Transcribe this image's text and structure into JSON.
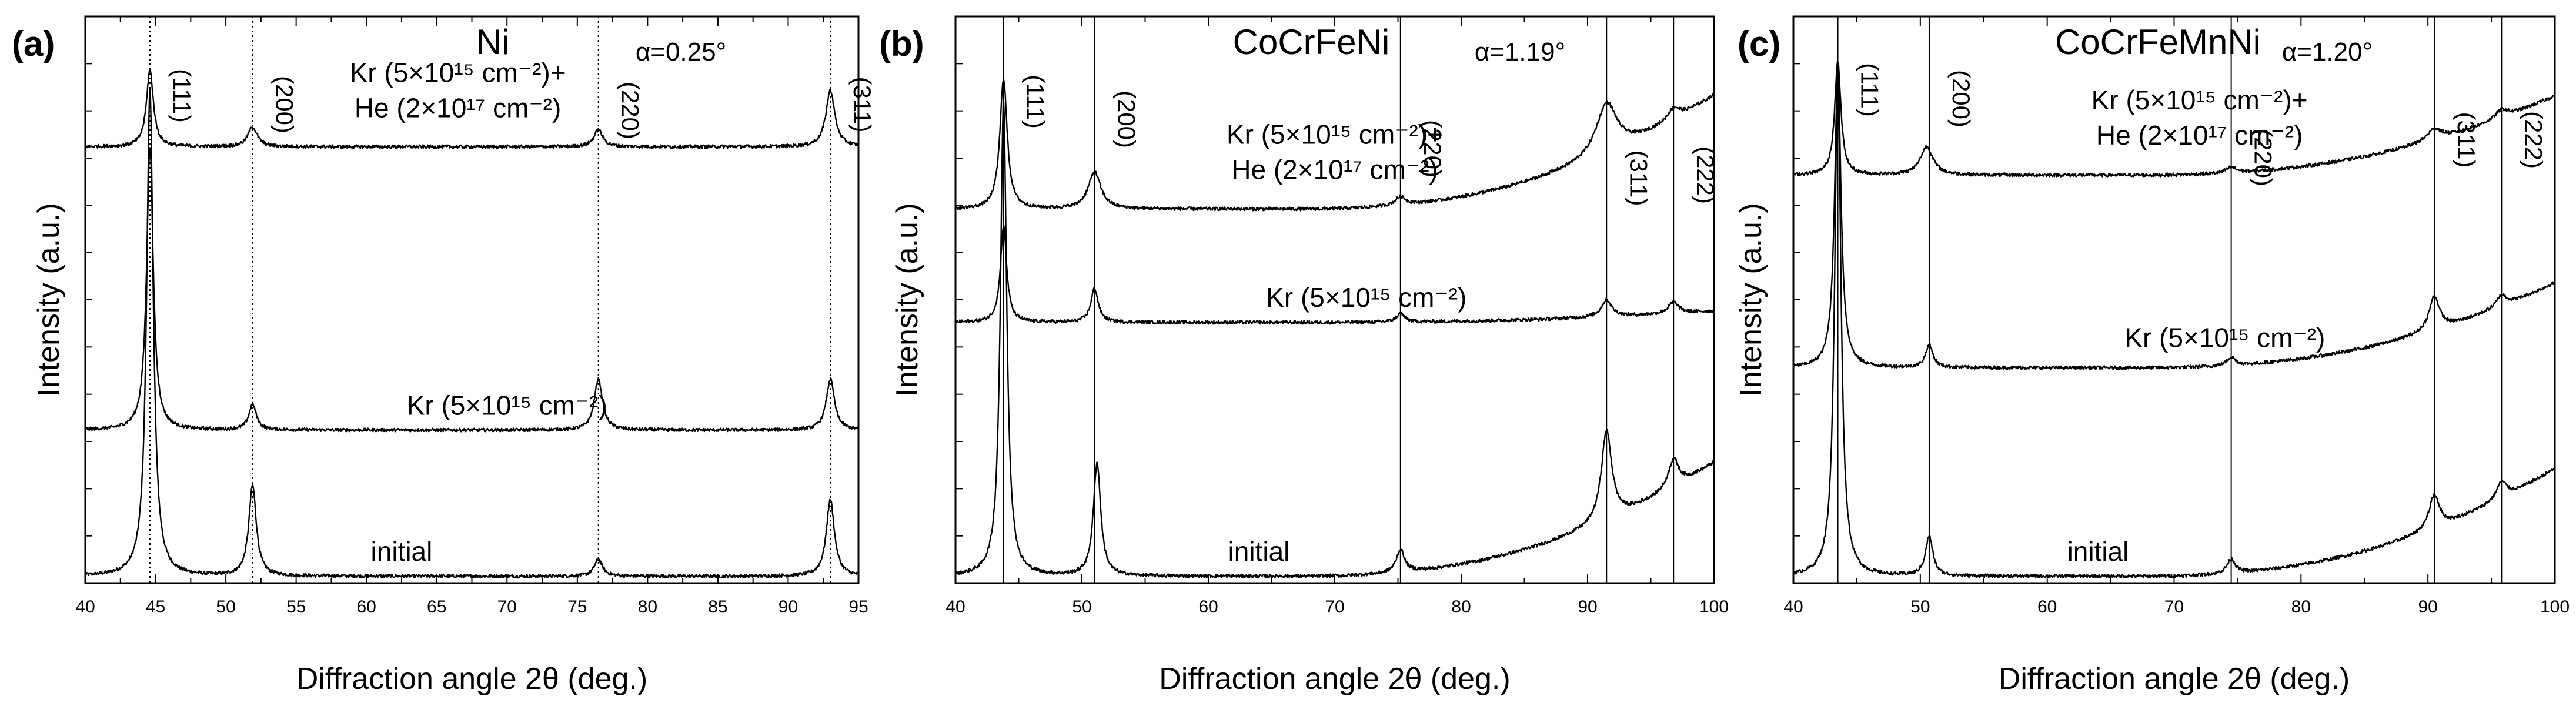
{
  "figure": {
    "xlabel": "Diffraction angle 2θ (deg.)",
    "ylabel": "Intensity (a.u.)"
  },
  "chart_data": [
    {
      "panel_label": "(a)",
      "type": "line",
      "title": "Ni",
      "incidence_angle": "α=0.25°",
      "xlim": [
        40,
        95
      ],
      "xticks": [
        40,
        45,
        50,
        55,
        60,
        65,
        70,
        75,
        80,
        85,
        90,
        95
      ],
      "ylim": [
        0,
        1
      ],
      "reference_line_style": "dotted",
      "peaks": [
        {
          "label": "(111)",
          "x": 44.6
        },
        {
          "label": "(200)",
          "x": 51.9
        },
        {
          "label": "(220)",
          "x": 76.5
        },
        {
          "label": "(311)",
          "x": 93.0
        }
      ],
      "series": [
        {
          "name": "initial",
          "label_main": "initial",
          "label_pos": 62.5,
          "baseline": 0.012,
          "slope": 0.0,
          "peaks": [
            {
              "x": 44.6,
              "h": 0.86,
              "w": 0.28
            },
            {
              "x": 51.9,
              "h": 0.16,
              "w": 0.32
            },
            {
              "x": 76.5,
              "h": 0.03,
              "w": 0.35
            },
            {
              "x": 93.0,
              "h": 0.135,
              "w": 0.35
            }
          ]
        },
        {
          "name": "Kr",
          "label_main": "Kr (5×10¹⁵ cm⁻²)",
          "label_pos": 70.0,
          "baseline": 0.27,
          "slope": 0.0,
          "peaks": [
            {
              "x": 44.6,
              "h": 0.5,
              "w": 0.28
            },
            {
              "x": 51.9,
              "h": 0.045,
              "w": 0.32
            },
            {
              "x": 76.5,
              "h": 0.09,
              "w": 0.35
            },
            {
              "x": 93.0,
              "h": 0.09,
              "w": 0.35
            }
          ]
        },
        {
          "name": "Kr + He",
          "label_main": "Kr (5×10¹⁵ cm⁻²)+",
          "label_sub": "He (2×10¹⁷ cm⁻²)",
          "label_pos": 66.5,
          "baseline": 0.77,
          "slope": 0.0,
          "peaks": [
            {
              "x": 44.6,
              "h": 0.135,
              "w": 0.3
            },
            {
              "x": 51.9,
              "h": 0.035,
              "w": 0.4
            },
            {
              "x": 76.5,
              "h": 0.03,
              "w": 0.38
            },
            {
              "x": 93.0,
              "h": 0.1,
              "w": 0.38
            }
          ]
        }
      ]
    },
    {
      "panel_label": "(b)",
      "type": "line",
      "title": "CoCrFeNi",
      "incidence_angle": "α=1.19°",
      "xlim": [
        40,
        100
      ],
      "xticks": [
        40,
        50,
        60,
        70,
        80,
        90,
        100
      ],
      "ylim": [
        0,
        1
      ],
      "reference_line_style": "solid",
      "peaks": [
        {
          "label": "(111)",
          "x": 43.8
        },
        {
          "label": "(200)",
          "x": 51.0
        },
        {
          "label": "(220)",
          "x": 75.2
        },
        {
          "label": "(311)",
          "x": 91.5
        },
        {
          "label": "(222)",
          "x": 96.8
        }
      ],
      "series": [
        {
          "name": "initial",
          "label_main": "initial",
          "label_pos": 64.0,
          "baseline": 0.012,
          "slope": 0.2,
          "peaks": [
            {
              "x": 43.8,
              "h": 0.84,
              "w": 0.3
            },
            {
              "x": 51.2,
              "h": 0.2,
              "w": 0.35
            },
            {
              "x": 75.2,
              "h": 0.04,
              "w": 0.4
            },
            {
              "x": 91.5,
              "h": 0.16,
              "w": 0.5
            },
            {
              "x": 96.8,
              "h": 0.05,
              "w": 0.5
            }
          ]
        },
        {
          "name": "Kr",
          "label_main": "Kr (5×10¹⁵ cm⁻²)",
          "label_pos": 72.5,
          "baseline": 0.46,
          "slope": 0.02,
          "peaks": [
            {
              "x": 43.8,
              "h": 0.17,
              "w": 0.3
            },
            {
              "x": 51.0,
              "h": 0.06,
              "w": 0.35
            },
            {
              "x": 75.2,
              "h": 0.015,
              "w": 0.4
            },
            {
              "x": 91.5,
              "h": 0.03,
              "w": 0.5
            },
            {
              "x": 96.8,
              "h": 0.02,
              "w": 0.5
            }
          ]
        },
        {
          "name": "Kr + He",
          "label_main": "Kr (5×10¹⁵ cm⁻²)+",
          "label_sub": "He (2×10¹⁷ cm⁻²)",
          "label_pos": 70.0,
          "baseline": 0.66,
          "slope": 0.2,
          "peaks": [
            {
              "x": 43.8,
              "h": 0.23,
              "w": 0.35
            },
            {
              "x": 51.0,
              "h": 0.065,
              "w": 0.6
            },
            {
              "x": 75.2,
              "h": 0.015,
              "w": 0.5
            },
            {
              "x": 91.5,
              "h": 0.09,
              "w": 1.0
            },
            {
              "x": 96.8,
              "h": 0.02,
              "w": 0.6
            }
          ]
        }
      ]
    },
    {
      "panel_label": "(c)",
      "type": "line",
      "title": "CoCrFeMnNi",
      "incidence_angle": "α=1.20°",
      "xlim": [
        40,
        100
      ],
      "xticks": [
        40,
        50,
        60,
        70,
        80,
        90,
        100
      ],
      "ylim": [
        0,
        1
      ],
      "reference_line_style": "solid",
      "peaks": [
        {
          "label": "(111)",
          "x": 43.5
        },
        {
          "label": "(200)",
          "x": 50.7
        },
        {
          "label": "(220)",
          "x": 74.5
        },
        {
          "label": "(311)",
          "x": 90.5
        },
        {
          "label": "(222)",
          "x": 95.8
        }
      ],
      "series": [
        {
          "name": "initial",
          "label_main": "initial",
          "label_pos": 64.0,
          "baseline": 0.012,
          "slope": 0.19,
          "peaks": [
            {
              "x": 43.5,
              "h": 0.89,
              "w": 0.3
            },
            {
              "x": 50.7,
              "h": 0.07,
              "w": 0.35
            },
            {
              "x": 74.5,
              "h": 0.025,
              "w": 0.4
            },
            {
              "x": 90.5,
              "h": 0.06,
              "w": 0.5
            },
            {
              "x": 95.8,
              "h": 0.03,
              "w": 0.5
            }
          ]
        },
        {
          "name": "Kr",
          "label_main": "Kr (5×10¹⁵ cm⁻²)",
          "label_pos": 74.0,
          "baseline": 0.38,
          "slope": 0.15,
          "peaks": [
            {
              "x": 43.5,
              "h": 0.53,
              "w": 0.3
            },
            {
              "x": 50.7,
              "h": 0.04,
              "w": 0.35
            },
            {
              "x": 74.5,
              "h": 0.015,
              "w": 0.4
            },
            {
              "x": 90.5,
              "h": 0.06,
              "w": 0.5
            },
            {
              "x": 95.8,
              "h": 0.02,
              "w": 0.5
            }
          ]
        },
        {
          "name": "Kr + He",
          "label_main": "Kr (5×10¹⁵ cm⁻²)+",
          "label_sub": "He (2×10¹⁷ cm⁻²)",
          "label_pos": 72.0,
          "baseline": 0.72,
          "slope": 0.14,
          "peaks": [
            {
              "x": 43.5,
              "h": 0.2,
              "w": 0.3
            },
            {
              "x": 50.5,
              "h": 0.05,
              "w": 0.6
            },
            {
              "x": 74.5,
              "h": 0.01,
              "w": 0.5
            },
            {
              "x": 90.5,
              "h": 0.02,
              "w": 0.7
            },
            {
              "x": 95.8,
              "h": 0.015,
              "w": 0.6
            }
          ]
        }
      ]
    }
  ]
}
